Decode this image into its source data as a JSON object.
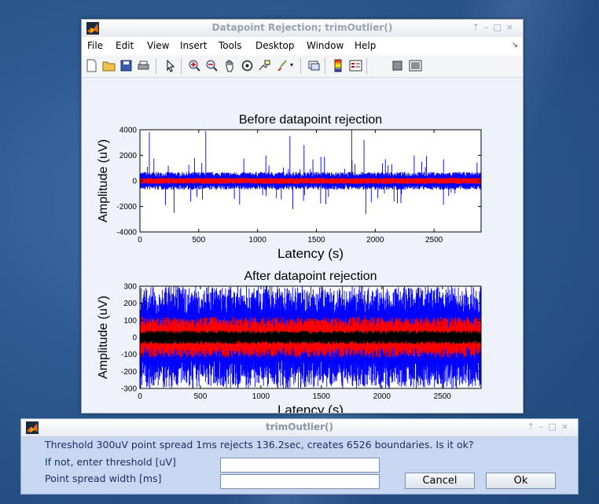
{
  "figure_window": {
    "title": "Datapoint Rejection; trimOutlier()",
    "menu": [
      "File",
      "Edit",
      "View",
      "Insert",
      "Tools",
      "Desktop",
      "Window",
      "Help"
    ]
  },
  "toolbar_icons": [
    "new-file-icon",
    "open-folder-icon",
    "save-icon",
    "print-icon",
    "pointer-icon",
    "zoom-in-icon",
    "zoom-out-icon",
    "pan-hand-icon",
    "rotate-3d-icon",
    "data-cursor-icon",
    "brush-icon",
    "link-icon",
    "colorbar-icon",
    "legend-icon",
    "hide-plot-tools-icon",
    "show-plot-tools-icon"
  ],
  "chart_data": [
    {
      "type": "line",
      "title": "Before datapoint rejection",
      "xlabel": "Latency (s)",
      "ylabel": "Amplitude (uV)",
      "xlim": [
        0,
        2900
      ],
      "ylim": [
        -4000,
        4000
      ],
      "xticks": [
        "0",
        "500",
        "1000",
        "1500",
        "2000",
        "2500"
      ],
      "yticks": [
        "4000",
        "2000",
        "0",
        "-2000",
        "-4000"
      ],
      "series": [
        {
          "color": "#0000ff",
          "band": [
            -700,
            700
          ],
          "spikes": [
            [
              80,
              3800
            ],
            [
              290,
              -2500
            ],
            [
              560,
              3900
            ],
            [
              1275,
              3500
            ],
            [
              1300,
              -2200
            ],
            [
              1395,
              2800
            ],
            [
              1800,
              4000
            ],
            [
              1905,
              3200
            ],
            [
              1920,
              -2600
            ]
          ]
        },
        {
          "color": "#ff0000",
          "band": [
            -250,
            250
          ]
        }
      ]
    },
    {
      "type": "line",
      "title": "After datapoint rejection",
      "xlabel": "Latency (s)",
      "ylabel": "Amplitude (uV)",
      "xlim": [
        0,
        2820
      ],
      "ylim": [
        -300,
        300
      ],
      "xticks": [
        "0",
        "500",
        "1000",
        "1500",
        "2000",
        "2500"
      ],
      "yticks": [
        "300",
        "200",
        "100",
        "0",
        "-100",
        "-200",
        "-300"
      ],
      "series": [
        {
          "color": "#0000ff",
          "band": [
            -300,
            300
          ]
        },
        {
          "color": "#ff0000",
          "band": [
            -120,
            120
          ]
        },
        {
          "color": "#000000",
          "band": [
            -40,
            40
          ]
        }
      ]
    }
  ],
  "dialog": {
    "title": "trimOutlier()",
    "message": "Threshold 300uV point spread  1ms rejects 136.2sec, creates 6526 boundaries. Is it ok?",
    "threshold_label": "If not, enter threshold [uV]",
    "threshold_value": "",
    "spread_label": "Point spread width [ms]",
    "spread_value": "",
    "cancel_label": "Cancel",
    "ok_label": "Ok"
  },
  "colors": {
    "accent": "#1a2d5c",
    "dialog_bg": "#c7d7f2",
    "blue_series": "#0000ff",
    "red_series": "#ff0000"
  }
}
